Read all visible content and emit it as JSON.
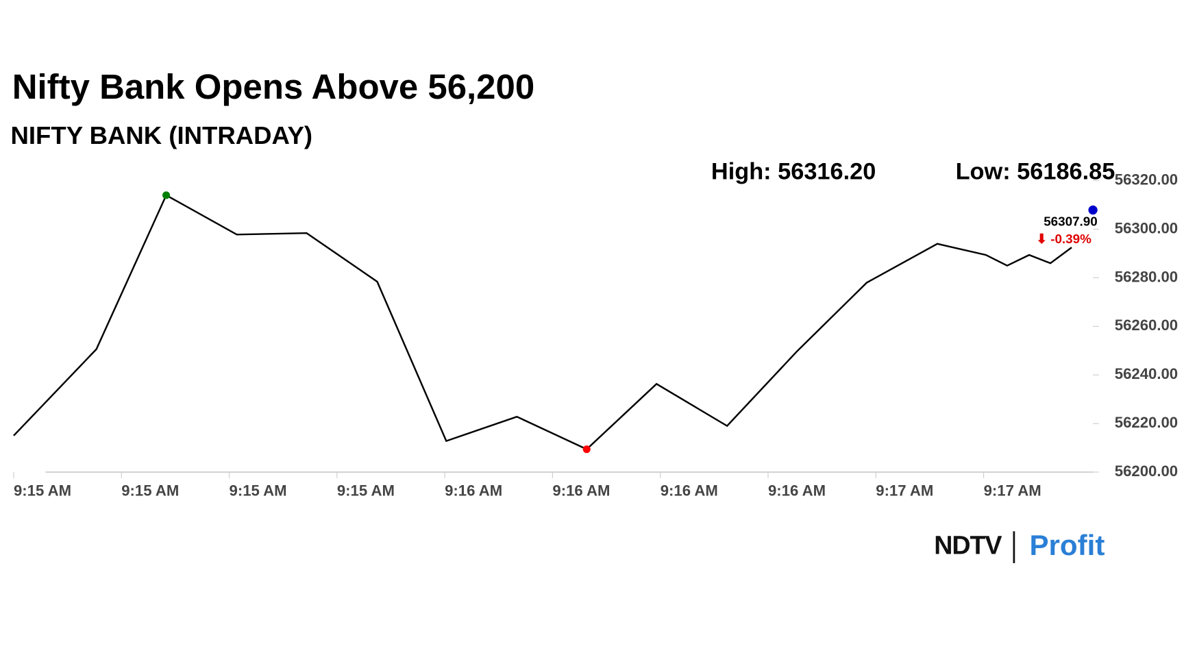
{
  "chart_data": {
    "type": "line",
    "title": "Nifty Bank Opens Above 56,200",
    "subtitle": "NIFTY BANK (INTRADAY)",
    "high_text": "High: 56316.20",
    "low_text": "Low: 56186.85",
    "last_value": 56307.9,
    "last_value_label": "56307.90",
    "change_label": "⬇ -0.39%",
    "xtick_labels": [
      "9:15 AM",
      "9:15 AM",
      "9:15 AM",
      "9:15 AM",
      "9:16 AM",
      "9:16 AM",
      "9:16 AM",
      "9:16 AM",
      "9:17 AM",
      "9:17 AM"
    ],
    "series": [
      {
        "color": "#000000",
        "values": [
          56215,
          56250.6,
          56314,
          56297.8,
          56298.4,
          56278.4,
          56212.8,
          56222.8,
          56209.4,
          56236.3,
          56219,
          56249.7,
          56278,
          56294,
          56289.4,
          56285,
          56289.4,
          56286,
          56292.5
        ]
      }
    ],
    "ylim": [
      56200,
      56320
    ],
    "yticks": [
      {
        "value": 56200,
        "label": "56200.00"
      },
      {
        "value": 56220,
        "label": "56220.00"
      },
      {
        "value": 56240,
        "label": "56240.00"
      },
      {
        "value": 56260,
        "label": "56260.00"
      },
      {
        "value": 56280,
        "label": "56280.00"
      },
      {
        "value": 56300,
        "label": "56300.00"
      },
      {
        "value": 56320,
        "label": "56320.00"
      }
    ],
    "high_marker_color": "#008000",
    "low_marker_color": "#ff0000",
    "last_marker_color": "#0000cc",
    "logo": {
      "left": "NDTV",
      "right": "Profit"
    }
  }
}
